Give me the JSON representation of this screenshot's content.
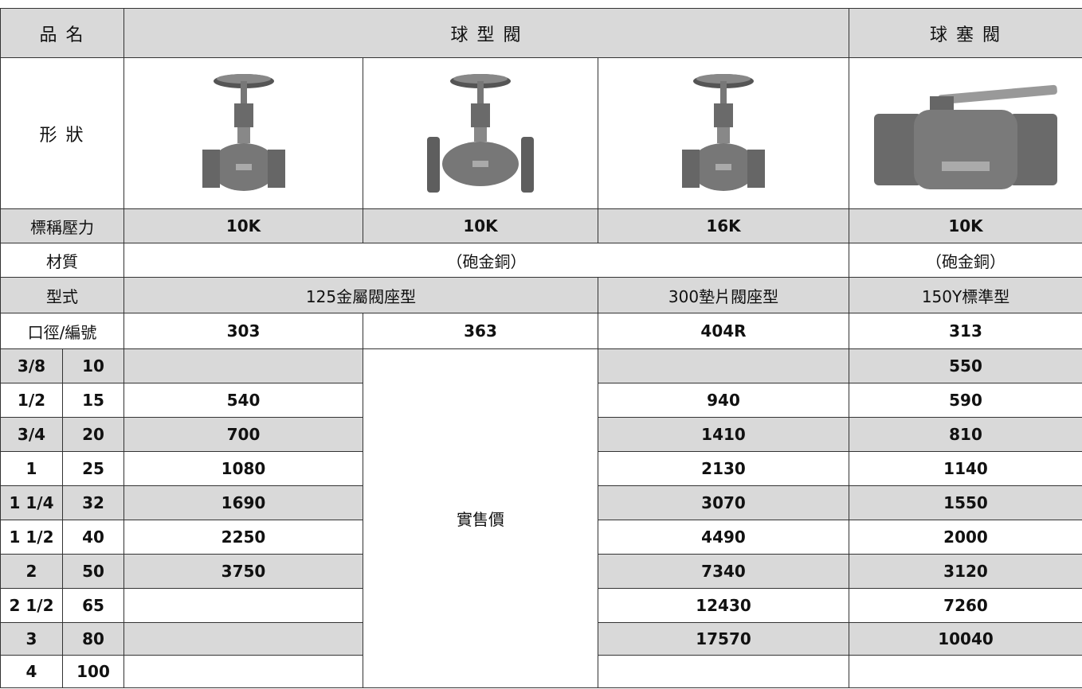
{
  "header": {
    "name_label": "品 名",
    "globe_valve": "球 型 閥",
    "ball_valve": "球 塞 閥"
  },
  "shape_label": "形 狀",
  "pressure": {
    "label": "標稱壓力",
    "values": [
      "10K",
      "10K",
      "16K",
      "10K"
    ]
  },
  "material": {
    "label": "材質",
    "globe": "（砲金銅）",
    "ball": "（砲金銅）"
  },
  "type": {
    "label": "型式",
    "values": [
      "125金屬閥座型",
      "300墊片閥座型",
      "150Y標準型"
    ]
  },
  "model": {
    "label": "口徑/編號",
    "values": [
      "303",
      "363",
      "404R",
      "313"
    ]
  },
  "price_note": "實售價",
  "rows": [
    [
      "3/8",
      10,
      null,
      null,
      550
    ],
    [
      "1/2",
      15,
      540,
      940,
      590
    ],
    [
      "3/4",
      20,
      700,
      1410,
      810
    ],
    [
      "1",
      25,
      1080,
      2130,
      1140
    ],
    [
      "1 1/4",
      32,
      1690,
      3070,
      1550
    ],
    [
      "1 1/2",
      40,
      2250,
      4490,
      2000
    ],
    [
      "2",
      50,
      3750,
      7340,
      3120
    ],
    [
      "2 1/2",
      65,
      null,
      12430,
      7260
    ],
    [
      "3",
      80,
      null,
      17570,
      10040
    ],
    [
      "4",
      100,
      null,
      null,
      null
    ]
  ]
}
